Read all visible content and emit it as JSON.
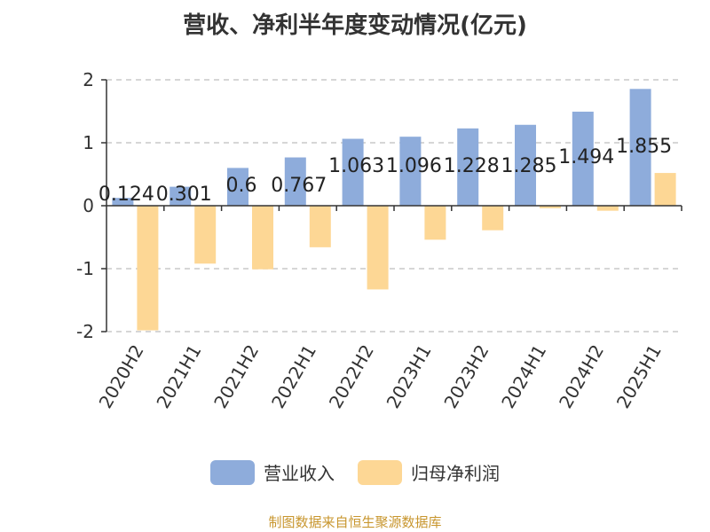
{
  "chart_data": {
    "type": "bar",
    "title": "营收、净利半年度变动情况(亿元)",
    "categories": [
      "2020H2",
      "2021H1",
      "2021H2",
      "2022H1",
      "2022H2",
      "2023H1",
      "2023H2",
      "2024H1",
      "2024H2",
      "2025H1"
    ],
    "series": [
      {
        "name": "营业收入",
        "color": "#8eacdb",
        "values": [
          0.124,
          0.301,
          0.6,
          0.767,
          1.063,
          1.096,
          1.228,
          1.285,
          1.494,
          1.855
        ],
        "labels": [
          "0.124",
          "0.301",
          "0.6",
          "0.767",
          "1.063",
          "1.096",
          "1.228",
          "1.285",
          "1.494",
          "1.855"
        ]
      },
      {
        "name": "归母净利润",
        "color": "#fdd795",
        "values": [
          -1.98,
          -0.92,
          -1.01,
          -0.66,
          -1.33,
          -0.54,
          -0.39,
          -0.04,
          -0.08,
          0.52
        ]
      }
    ],
    "yticks": [
      "2",
      "1",
      "0",
      "-1",
      "-2"
    ],
    "ylim": [
      -2,
      2
    ],
    "grid": true,
    "legend_position": "bottom"
  },
  "source": "制图数据来自恒生聚源数据库"
}
